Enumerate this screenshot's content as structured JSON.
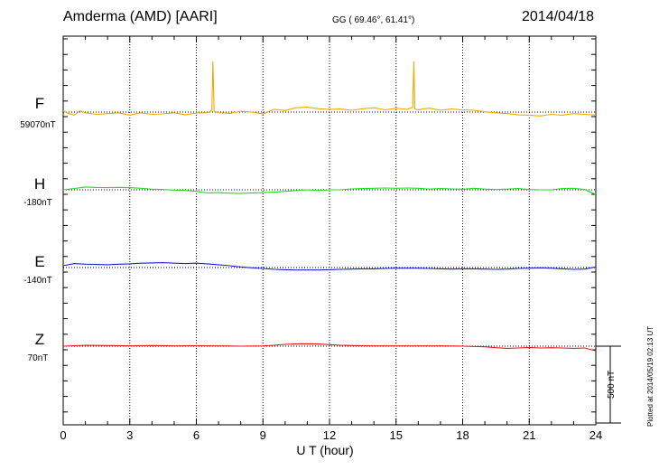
{
  "header": {
    "station": "Amderma (AMD)  [AARI]",
    "coords": "GG ( 69.46°,  61.41°)",
    "date": "2014/04/18"
  },
  "footer": {
    "plotted": "Plotted at 2014/05/19 02:13 UT"
  },
  "chart_data": {
    "type": "line",
    "xlabel": "U T (hour)",
    "xlim": [
      0,
      24
    ],
    "xticks": [
      0,
      3,
      6,
      9,
      12,
      15,
      18,
      21,
      24
    ],
    "grid": "dotted vertical lines every 3 hours",
    "scale_bar": {
      "label": "500 nT",
      "value_nT": 500
    },
    "series": [
      {
        "name": "F",
        "baseline_label": "59070nT",
        "color": "#f5a700",
        "x": [
          0,
          0.25,
          0.5,
          0.75,
          1,
          1.5,
          2,
          2.5,
          3,
          3.5,
          4,
          4.5,
          5,
          5.5,
          6,
          6.5,
          6.7,
          6.75,
          6.8,
          7,
          7.5,
          8,
          8.5,
          9,
          9.5,
          10,
          10.5,
          11,
          11.5,
          12,
          12.5,
          13,
          13.5,
          14,
          14.5,
          15,
          15.5,
          15.75,
          15.8,
          15.85,
          16,
          16.5,
          17,
          17.5,
          18,
          18.5,
          19,
          19.5,
          20,
          20.5,
          21,
          21.5,
          22,
          22.5,
          23,
          23.5,
          24
        ],
        "values": [
          7,
          -10,
          -20,
          8,
          -5,
          -15,
          -10,
          -5,
          -20,
          -5,
          -15,
          -12,
          -5,
          -18,
          -6,
          -4,
          10,
          330,
          5,
          -4,
          -8,
          5,
          0,
          -12,
          18,
          10,
          28,
          32,
          22,
          18,
          20,
          12,
          22,
          28,
          15,
          25,
          18,
          30,
          330,
          20,
          14,
          26,
          12,
          20,
          15,
          12,
          2,
          -5,
          -10,
          -18,
          -20,
          -25,
          -15,
          -20,
          -10,
          -15,
          -20
        ]
      },
      {
        "name": "H",
        "baseline_label": "-180nT",
        "color": "#22dd22",
        "x": [
          0,
          0.5,
          1,
          1.5,
          2,
          2.5,
          3,
          3.5,
          4,
          4.5,
          5,
          5.5,
          6,
          6.5,
          7,
          7.5,
          8,
          8.5,
          9,
          9.5,
          10,
          10.5,
          11,
          11.5,
          12,
          12.5,
          13,
          13.5,
          14,
          14.5,
          15,
          15.5,
          16,
          16.5,
          17,
          17.5,
          18,
          18.5,
          19,
          19.5,
          20,
          20.5,
          21,
          21.5,
          22,
          22.5,
          23,
          23.5,
          24
        ],
        "values": [
          0,
          8,
          18,
          15,
          14,
          16,
          14,
          10,
          4,
          2,
          -2,
          -4,
          -10,
          -20,
          -18,
          -22,
          -24,
          -20,
          -18,
          -15,
          -10,
          -5,
          0,
          -5,
          0,
          0,
          6,
          8,
          10,
          12,
          10,
          12,
          10,
          5,
          8,
          6,
          4,
          10,
          5,
          2,
          5,
          8,
          2,
          0,
          0,
          8,
          10,
          2,
          -30
        ]
      },
      {
        "name": "E",
        "baseline_label": "-140nT",
        "color": "#1a22cc",
        "x": [
          0,
          0.5,
          1,
          1.5,
          2,
          2.5,
          3,
          3.5,
          4,
          4.5,
          5,
          5.5,
          6,
          6.5,
          7,
          7.5,
          8,
          8.5,
          9,
          9.5,
          10,
          10.5,
          11,
          11.5,
          12,
          12.5,
          13,
          13.5,
          14,
          14.5,
          15,
          15.5,
          16,
          16.5,
          17,
          17.5,
          18,
          18.5,
          19,
          19.5,
          20,
          20.5,
          21,
          21.5,
          22,
          22.5,
          23,
          23.5,
          24
        ],
        "values": [
          12,
          26,
          22,
          20,
          18,
          22,
          24,
          28,
          30,
          32,
          28,
          26,
          28,
          24,
          18,
          12,
          4,
          -2,
          -6,
          -12,
          -14,
          -16,
          -16,
          -16,
          -14,
          -12,
          -10,
          -8,
          -8,
          -6,
          -4,
          -4,
          -4,
          -6,
          -8,
          -10,
          -8,
          -8,
          -10,
          -12,
          -10,
          -6,
          -4,
          -2,
          -4,
          -8,
          -12,
          -10,
          4
        ]
      },
      {
        "name": "Z",
        "baseline_label": "70nT",
        "color": "#e01818",
        "x": [
          0,
          1,
          2,
          3,
          4,
          5,
          6,
          7,
          8,
          9,
          9.5,
          10,
          10.5,
          11,
          11.5,
          12,
          12.5,
          13,
          14,
          15,
          16,
          17,
          18,
          18.5,
          19,
          19.5,
          20,
          20.5,
          21,
          21.5,
          22,
          22.5,
          23,
          23.5,
          24
        ],
        "values": [
          0,
          6,
          4,
          2,
          4,
          2,
          3,
          2,
          0,
          2,
          6,
          12,
          15,
          16,
          14,
          10,
          6,
          4,
          2,
          2,
          2,
          2,
          0,
          -2,
          -4,
          -10,
          -14,
          -12,
          -8,
          -12,
          -10,
          -12,
          -14,
          -12,
          -30
        ]
      }
    ]
  }
}
